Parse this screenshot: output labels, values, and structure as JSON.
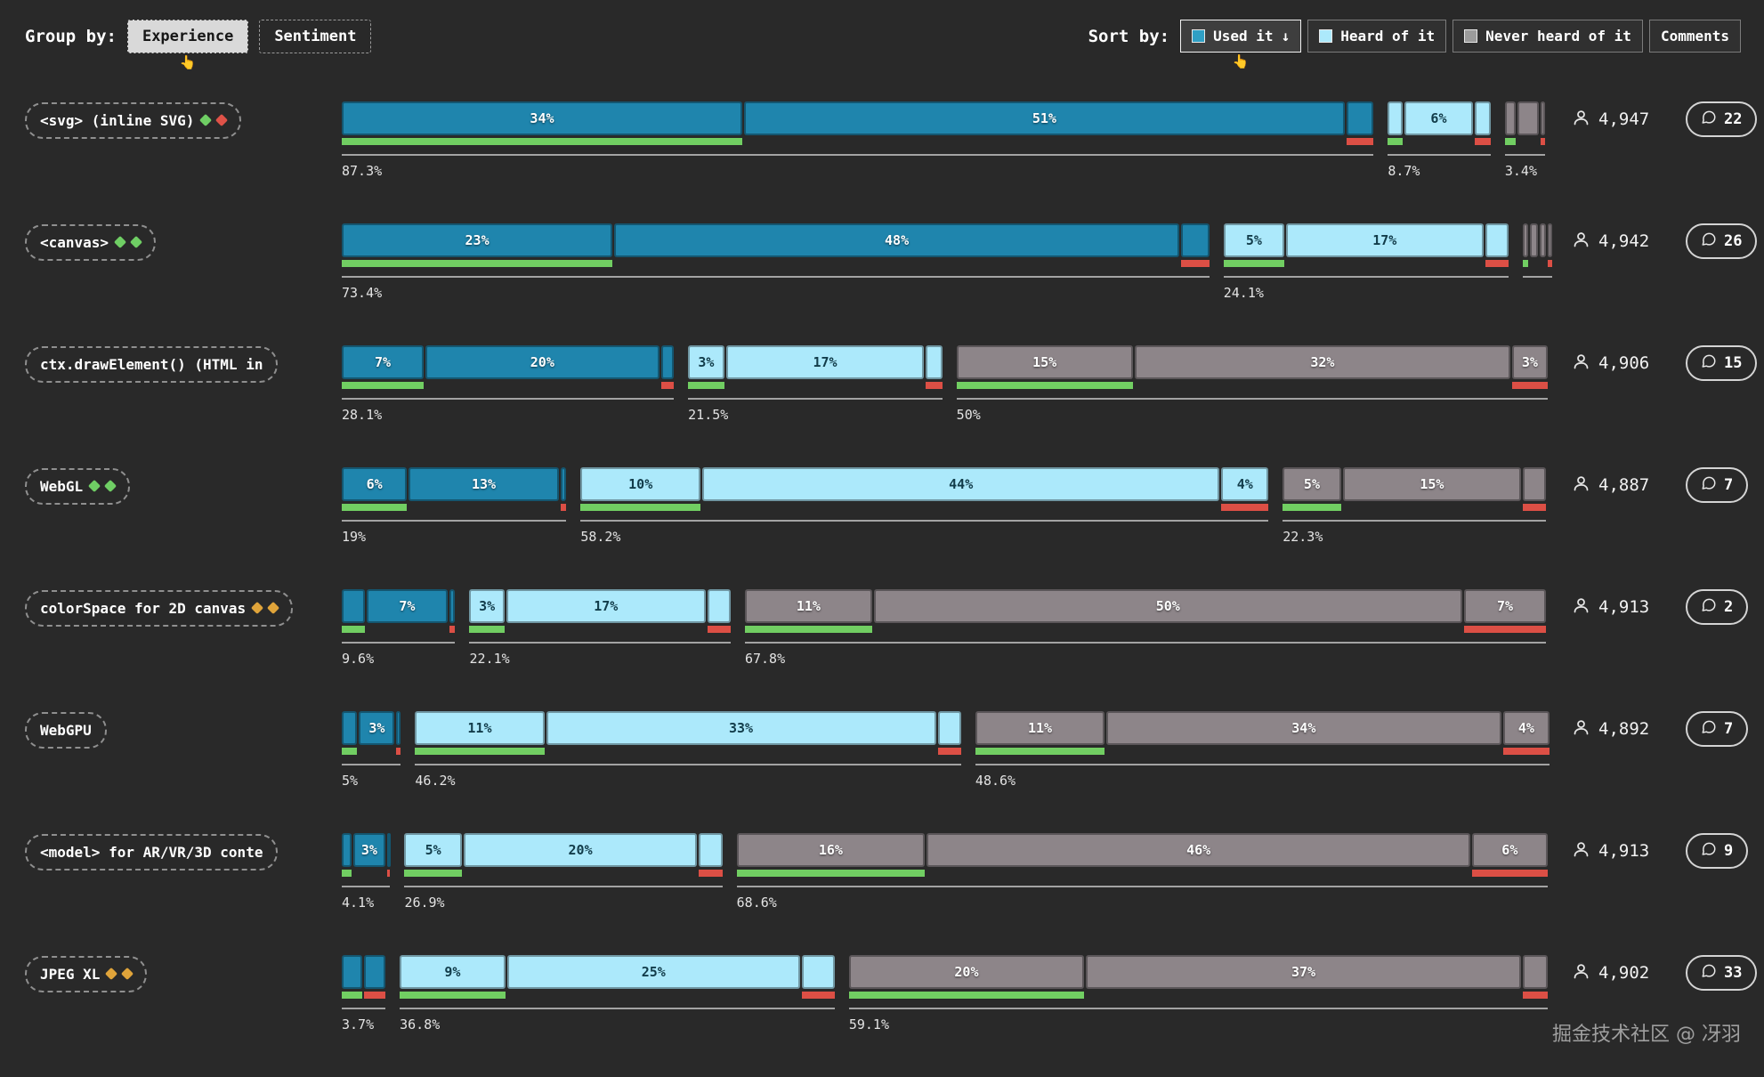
{
  "header": {
    "group_by": {
      "label": "Group by:",
      "pointer": "👆",
      "options": [
        {
          "label": "Experience",
          "selected": true
        },
        {
          "label": "Sentiment",
          "selected": false
        }
      ]
    },
    "sort_by": {
      "label": "Sort by:",
      "pointer": "👆",
      "options": [
        {
          "label": "Used it",
          "arrow": "↓",
          "swatch": "#2f9fc4",
          "selected": true
        },
        {
          "label": "Heard of it",
          "swatch": "#ace9fb",
          "selected": false
        },
        {
          "label": "Never heard of it",
          "swatch": "#9b9b9b",
          "selected": false
        },
        {
          "label": "Comments",
          "selected": false
        }
      ]
    }
  },
  "colors": {
    "background": "#292929",
    "used": "#1f85ad",
    "heard": "#ace9fb",
    "never": "#8d8589",
    "positive": "#71ce62",
    "negative": "#dc4f45"
  },
  "chart_data": {
    "type": "bar",
    "legend": [
      "Used it",
      "Heard of it",
      "Never heard of it"
    ],
    "legend_position": "top-right",
    "unit": "percent",
    "rows": [
      {
        "feature": "<svg> (inline SVG)",
        "icons": [
          "#6fce64",
          "#df5248"
        ],
        "users": "4,947",
        "comments": "22",
        "groups": [
          {
            "kind": "used",
            "total": 87.3,
            "total_label": "87.3%",
            "segments": [
              {
                "value": 34,
                "label": "34%"
              },
              {
                "value": 51,
                "label": "51%"
              },
              {
                "value": 2.3
              }
            ]
          },
          {
            "kind": "heard",
            "total": 8.7,
            "total_label": "8.7%",
            "segments": [
              {
                "value": 1.3
              },
              {
                "value": 6,
                "label": "6%"
              },
              {
                "value": 1.4
              }
            ]
          },
          {
            "kind": "never",
            "total": 3.4,
            "total_label": "3.4%",
            "segments": [
              {
                "value": 1.0
              },
              {
                "value": 2.0
              },
              {
                "value": 0.4
              }
            ]
          }
        ]
      },
      {
        "feature": "<canvas>",
        "icons": [
          "#6fce64",
          "#6fce64"
        ],
        "users": "4,942",
        "comments": "26",
        "groups": [
          {
            "kind": "used",
            "total": 73.4,
            "total_label": "73.4%",
            "segments": [
              {
                "value": 23,
                "label": "23%"
              },
              {
                "value": 48,
                "label": "48%"
              },
              {
                "value": 2.4
              }
            ]
          },
          {
            "kind": "heard",
            "total": 24.1,
            "total_label": "24.1%",
            "segments": [
              {
                "value": 5.2,
                "label": "5%"
              },
              {
                "value": 16.9,
                "label": "17%"
              },
              {
                "value": 2.0
              }
            ]
          },
          {
            "kind": "never",
            "total": 2.5,
            "total_label": "",
            "segments": [
              {
                "value": 0.6
              },
              {
                "value": 0.8
              },
              {
                "value": 0.6
              },
              {
                "value": 0.5
              }
            ]
          }
        ]
      },
      {
        "feature": "ctx.drawElement() (HTML in",
        "icons": [],
        "users": "4,906",
        "comments": "15",
        "groups": [
          {
            "kind": "used",
            "total": 28.1,
            "total_label": "28.1%",
            "segments": [
              {
                "value": 7,
                "label": "7%"
              },
              {
                "value": 20,
                "label": "20%"
              },
              {
                "value": 1.1
              }
            ]
          },
          {
            "kind": "heard",
            "total": 21.5,
            "total_label": "21.5%",
            "segments": [
              {
                "value": 3.1,
                "label": "3%"
              },
              {
                "value": 17,
                "label": "17%"
              },
              {
                "value": 1.4
              }
            ]
          },
          {
            "kind": "never",
            "total": 50,
            "total_label": "50%",
            "segments": [
              {
                "value": 15,
                "label": "15%"
              },
              {
                "value": 32,
                "label": "32%"
              },
              {
                "value": 3,
                "label": "3%"
              }
            ]
          }
        ]
      },
      {
        "feature": "WebGL",
        "icons": [
          "#6fce64",
          "#6fce64"
        ],
        "users": "4,887",
        "comments": "7",
        "groups": [
          {
            "kind": "used",
            "total": 19,
            "total_label": "19%",
            "segments": [
              {
                "value": 5.6,
                "label": "6%"
              },
              {
                "value": 12.9,
                "label": "13%"
              },
              {
                "value": 0.5
              }
            ]
          },
          {
            "kind": "heard",
            "total": 58.2,
            "total_label": "58.2%",
            "segments": [
              {
                "value": 10.2,
                "label": "10%"
              },
              {
                "value": 44,
                "label": "44%"
              },
              {
                "value": 4,
                "label": "4%"
              }
            ]
          },
          {
            "kind": "never",
            "total": 22.3,
            "total_label": "22.3%",
            "segments": [
              {
                "value": 5,
                "label": "5%"
              },
              {
                "value": 15.3,
                "label": "15%"
              },
              {
                "value": 2.0
              }
            ]
          }
        ]
      },
      {
        "feature": "colorSpace for 2D canvas",
        "icons": [
          "#e0a43a",
          "#e0a43a"
        ],
        "users": "4,913",
        "comments": "2",
        "groups": [
          {
            "kind": "used",
            "total": 9.6,
            "total_label": "9.6%",
            "segments": [
              {
                "value": 2.0
              },
              {
                "value": 7.1,
                "label": "7%"
              },
              {
                "value": 0.5
              }
            ]
          },
          {
            "kind": "heard",
            "total": 22.1,
            "total_label": "22.1%",
            "segments": [
              {
                "value": 3.0,
                "label": "3%"
              },
              {
                "value": 17.1,
                "label": "17%"
              },
              {
                "value": 2.0
              }
            ]
          },
          {
            "kind": "never",
            "total": 67.8,
            "total_label": "67.8%",
            "segments": [
              {
                "value": 10.8,
                "label": "11%"
              },
              {
                "value": 50,
                "label": "50%"
              },
              {
                "value": 7,
                "label": "7%"
              }
            ]
          }
        ]
      },
      {
        "feature": "WebGPU",
        "icons": [],
        "users": "4,892",
        "comments": "7",
        "groups": [
          {
            "kind": "used",
            "total": 5,
            "total_label": "5%",
            "segments": [
              {
                "value": 1.4
              },
              {
                "value": 3.2,
                "label": "3%"
              },
              {
                "value": 0.4
              }
            ]
          },
          {
            "kind": "heard",
            "total": 46.2,
            "total_label": "46.2%",
            "segments": [
              {
                "value": 11,
                "label": "11%"
              },
              {
                "value": 33.2,
                "label": "33%"
              },
              {
                "value": 2.0
              }
            ]
          },
          {
            "kind": "never",
            "total": 48.6,
            "total_label": "48.6%",
            "segments": [
              {
                "value": 11,
                "label": "11%"
              },
              {
                "value": 33.6,
                "label": "34%"
              },
              {
                "value": 4,
                "label": "4%"
              }
            ]
          }
        ]
      },
      {
        "feature": "<model> for AR/VR/3D conte",
        "icons": [],
        "users": "4,913",
        "comments": "9",
        "groups": [
          {
            "kind": "used",
            "total": 4.1,
            "total_label": "4.1%",
            "segments": [
              {
                "value": 0.9
              },
              {
                "value": 2.9,
                "label": "3%"
              },
              {
                "value": 0.3
              }
            ]
          },
          {
            "kind": "heard",
            "total": 26.9,
            "total_label": "26.9%",
            "segments": [
              {
                "value": 4.9,
                "label": "5%"
              },
              {
                "value": 20,
                "label": "20%"
              },
              {
                "value": 2.0
              }
            ]
          },
          {
            "kind": "never",
            "total": 68.6,
            "total_label": "68.6%",
            "segments": [
              {
                "value": 16,
                "label": "16%"
              },
              {
                "value": 46.2,
                "label": "46%"
              },
              {
                "value": 6.4,
                "label": "6%"
              }
            ]
          }
        ]
      },
      {
        "feature": "JPEG XL",
        "icons": [
          "#e0a43a",
          "#e0a43a"
        ],
        "users": "4,902",
        "comments": "33",
        "groups": [
          {
            "kind": "used",
            "total": 3.7,
            "total_label": "3.7%",
            "segments": [
              {
                "value": 1.8
              },
              {
                "value": 1.9
              }
            ]
          },
          {
            "kind": "heard",
            "total": 36.8,
            "total_label": "36.8%",
            "segments": [
              {
                "value": 9,
                "label": "9%"
              },
              {
                "value": 25,
                "label": "25%"
              },
              {
                "value": 2.8
              }
            ]
          },
          {
            "kind": "never",
            "total": 59.1,
            "total_label": "59.1%",
            "segments": [
              {
                "value": 20,
                "label": "20%"
              },
              {
                "value": 37,
                "label": "37%"
              },
              {
                "value": 2.1
              }
            ]
          }
        ]
      }
    ]
  },
  "watermark": "掘金技术社区 @ 冴羽"
}
